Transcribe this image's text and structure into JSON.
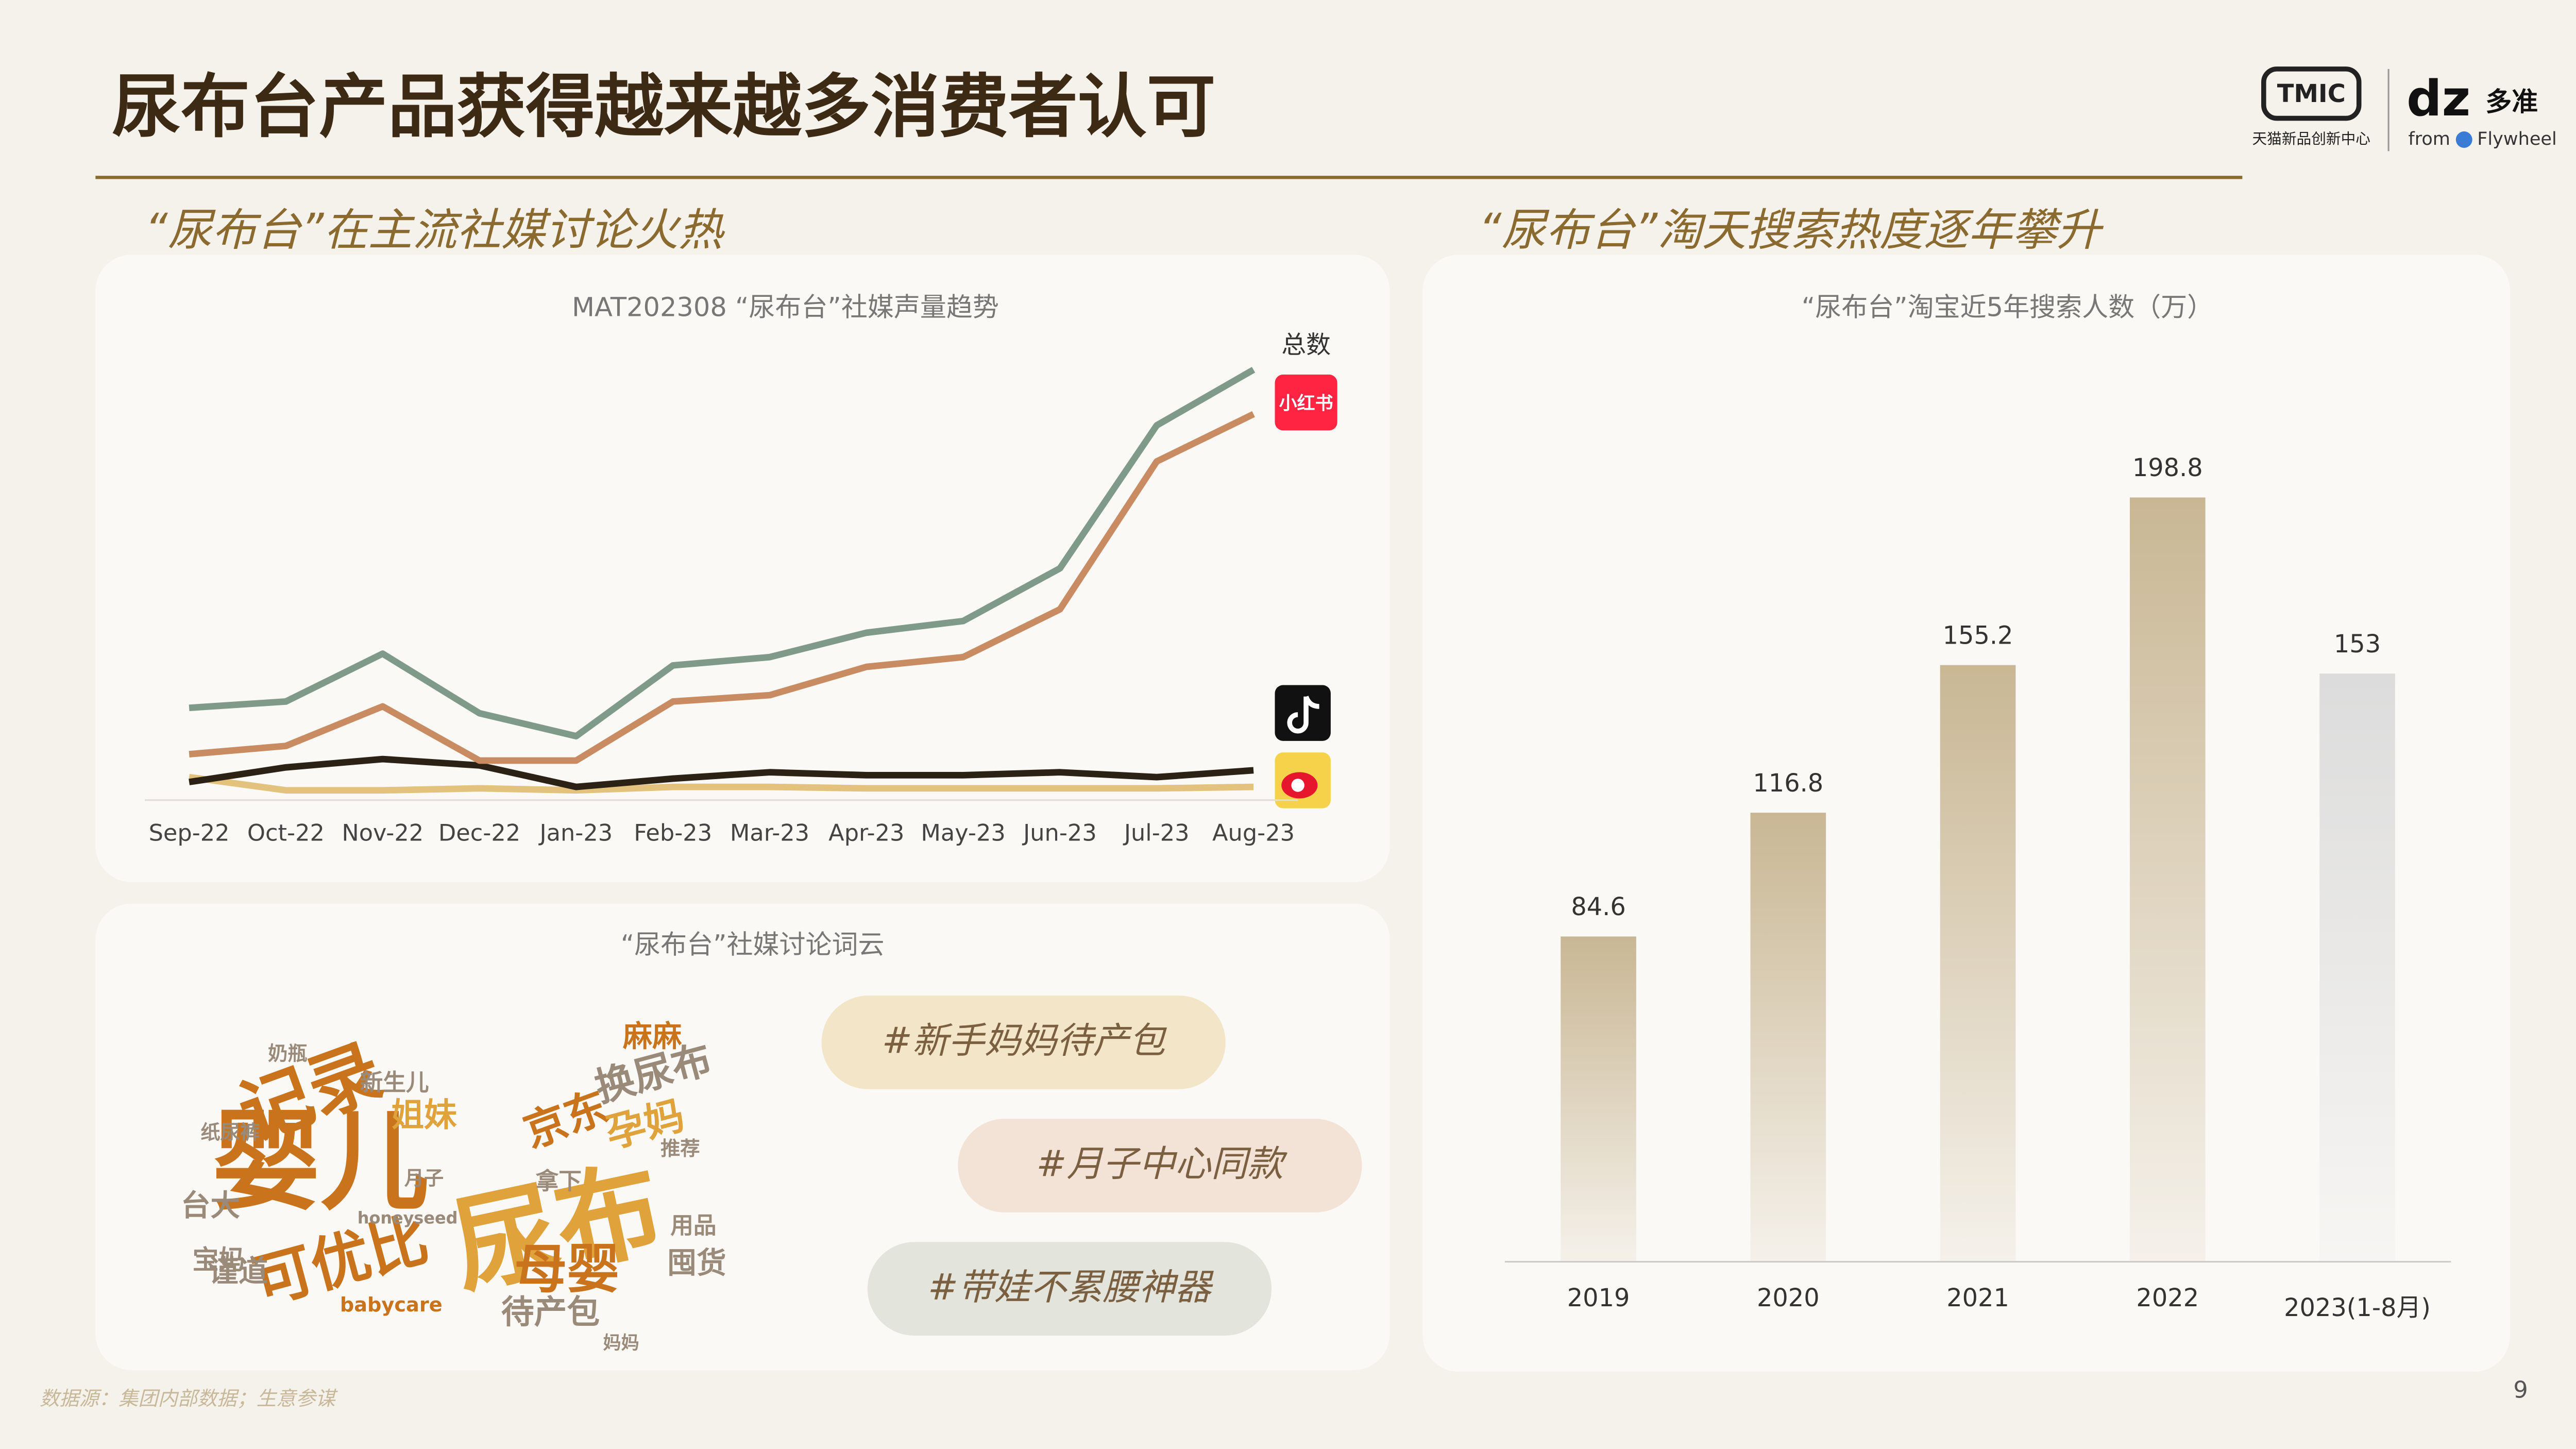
{
  "header": {
    "title": "尿布台产品获得越来越多消费者认可",
    "logo_tmic": "TMIC",
    "logo_tmic_caption": "天猫新品创新中心",
    "logo_dz": "dz",
    "logo_dz_name": "多准",
    "logo_from": "from",
    "logo_flywheel": "Flywheel"
  },
  "sections": [
    "“尿布台”在主流社媒讨论火热",
    "“尿布台”淘天搜索热度逐年攀升"
  ],
  "chart_data": [
    {
      "type": "line",
      "title": "MAT202308 “尿布台”社媒声量趋势",
      "categories": [
        "Sep-22",
        "Oct-22",
        "Nov-22",
        "Dec-22",
        "Jan-23",
        "Feb-23",
        "Mar-23",
        "Apr-23",
        "May-23",
        "Jun-23",
        "Jul-23",
        "Aug-23"
      ],
      "ylim": [
        0,
        100
      ],
      "series": [
        {
          "name": "总数",
          "color": "#7f9a88",
          "values": [
            18.9,
            20.2,
            30,
            17.8,
            13.1,
            27.6,
            29.3,
            34.3,
            36.7,
            47.5,
            76.8,
            88.2
          ]
        },
        {
          "name": "小红书",
          "color": "#c98c62",
          "values": [
            9.4,
            11.1,
            19.2,
            8.1,
            8.1,
            20.2,
            21.5,
            27.3,
            29.3,
            39.1,
            69.4,
            79.1
          ]
        },
        {
          "color": "#2b2114",
          "values": [
            3.7,
            6.7,
            8.4,
            7.1,
            2.7,
            4.4,
            5.7,
            5.1,
            5.1,
            5.7,
            4.7,
            6.1
          ]
        },
        {
          "color": "#e2c27c",
          "values": [
            4.7,
            2,
            2,
            2.4,
            2,
            2.7,
            2.7,
            2.4,
            2.4,
            2.4,
            2.4,
            2.7
          ]
        }
      ]
    },
    {
      "type": "bar",
      "title": "“尿布台”淘宝近5年搜索人数（万）",
      "categories": [
        "2019",
        "2020",
        "2021",
        "2022",
        "2023(1-8月)"
      ],
      "values": [
        84.6,
        116.8,
        155.2,
        198.8,
        153
      ],
      "colors": [
        "#c9b794",
        "#c9b794",
        "#c9b794",
        "#c9b794",
        "#dcdcdc"
      ],
      "ylim": [
        0,
        200
      ]
    }
  ],
  "word_cloud": {
    "title": "“尿布台”社媒讨论词云",
    "words": [
      "婴儿",
      "尿布",
      "记录",
      "可优比",
      "母婴",
      "京东",
      "孕妈",
      "换尿布",
      "麻麻",
      "待产包",
      "姐妹",
      "宝妈",
      "新生儿",
      "台大",
      "囤货",
      "用品",
      "babycare",
      "honeyseed",
      "拿下",
      "谨道",
      "纸尿裤",
      "奶瓶",
      "妈妈",
      "推荐",
      "月子"
    ]
  },
  "tags": [
    "#新手妈妈待产包",
    "#月子中心同款",
    "#带娃不累腰神器"
  ],
  "footer": {
    "source": "数据源：集团内部数据；生意参谋",
    "page": "9"
  }
}
